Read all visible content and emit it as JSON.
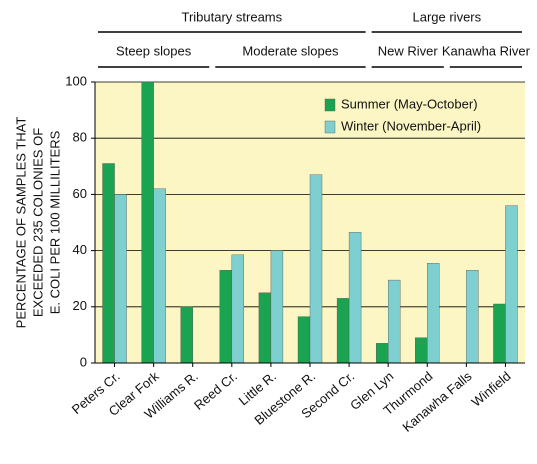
{
  "chart_data": {
    "type": "bar",
    "ylabel": [
      "PERCENTAGE OF SAMPLES THAT",
      "EXCEEDED 235 COLONIES OF",
      "E. COLI PER 100 MILLILITERS"
    ],
    "groups": [
      "Tributary streams",
      "Large rivers"
    ],
    "subgroups": [
      "Steep slopes",
      "Moderate slopes",
      "New River",
      "Kanawha River"
    ],
    "categories": [
      "Peters Cr.",
      "Clear Fork",
      "Williams R.",
      "Reed Cr.",
      "Little R.",
      "Bluestone R.",
      "Second Cr.",
      "Glen Lyn",
      "Thurmond",
      "Kanawha Falls",
      "Winfield"
    ],
    "series": [
      {
        "name": "Summer (May-October)",
        "color": "#1aa350",
        "values": [
          71,
          100,
          20,
          33,
          25,
          16.5,
          23,
          7,
          9,
          null,
          21
        ]
      },
      {
        "name": "Winter (November-April)",
        "color": "#7dcfd0",
        "values": [
          60,
          62,
          null,
          38.5,
          40,
          67,
          46.5,
          29.5,
          35.5,
          33,
          56
        ]
      }
    ],
    "ylim": [
      0,
      100
    ],
    "yticks": [
      0,
      20,
      40,
      60,
      80,
      100
    ],
    "grid": true,
    "legend": "upper right"
  }
}
